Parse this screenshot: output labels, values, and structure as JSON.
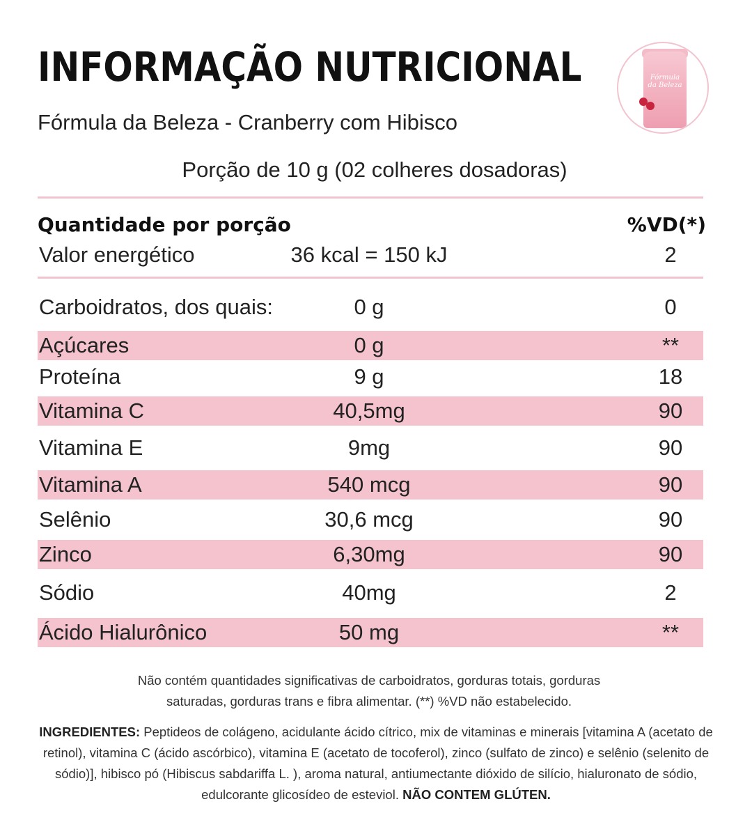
{
  "header": {
    "title": "INFORMAÇÃO NUTRICIONAL",
    "subtitle": "Fórmula da Beleza - Cranberry com Hibisco",
    "portion": "Porção de 10 g (02 colheres dosadoras)"
  },
  "product_image": {
    "label_line1": "Fórmula",
    "label_line2": "da Beleza",
    "accent_color": "#f4c3cd"
  },
  "table": {
    "header_left": "Quantidade por porção",
    "header_right": "%VD(*)",
    "energy": {
      "name": "Valor energético",
      "amount": "36 kcal = 150 kJ",
      "vd": "2"
    },
    "rows": [
      {
        "name": "Carboidratos, dos quais:",
        "amount": "0 g",
        "vd": "0",
        "shaded": false
      },
      {
        "name": "Açúcares",
        "amount": "0 g",
        "vd": "**",
        "shaded": true
      },
      {
        "name": "Proteína",
        "amount": "9 g",
        "vd": "18",
        "shaded": false
      },
      {
        "name": "Vitamina C",
        "amount": "40,5mg",
        "vd": "90",
        "shaded": true
      },
      {
        "name": "Vitamina E",
        "amount": "9mg",
        "vd": "90",
        "shaded": false
      },
      {
        "name": "Vitamina A",
        "amount": "540 mcg",
        "vd": "90",
        "shaded": true
      },
      {
        "name": "Selênio",
        "amount": "30,6 mcg",
        "vd": "90",
        "shaded": false
      },
      {
        "name": "Zinco",
        "amount": "6,30mg",
        "vd": "90",
        "shaded": true
      },
      {
        "name": "Sódio",
        "amount": "40mg",
        "vd": "2",
        "shaded": false
      },
      {
        "name": "Ácido Hialurônico",
        "amount": "50 mg",
        "vd": "**",
        "shaded": true
      }
    ]
  },
  "footnote": {
    "line1": "Não contém quantidades significativas de carboidratos, gorduras totais, gorduras",
    "line2": "saturadas, gorduras trans e fibra alimentar. (**) %VD não estabelecido."
  },
  "ingredients": {
    "label": "INGREDIENTES:",
    "text": " Peptideos de colágeno, acidulante ácido cítrico, mix de vitaminas e minerais [vitamina A (acetato de retinol), vitamina C (ácido ascórbico), vitamina E (acetato de tocoferol), zinco (sulfato de zinco) e selênio (selenito de sódio)], hibisco pó (Hibiscus sabdariffa L. ), aroma natural, antiumectante dióxido de silício, hialuronato de sódio, edulcorante glicosídeo de esteviol. ",
    "gluten": "NÃO CONTEM GLÚTEN."
  }
}
